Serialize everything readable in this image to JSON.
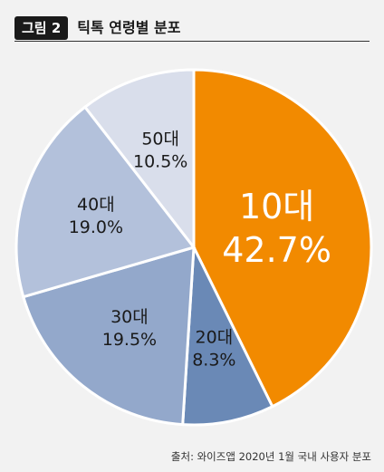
{
  "figure": {
    "badge": "그림 2",
    "title": "틱톡 연령별 분포",
    "source": "출처: 와이즈앱 2020년 1월 국내 사용자 분포"
  },
  "chart_data": {
    "type": "pie",
    "title": "틱톡 연령별 분포",
    "start_angle_deg": 0,
    "direction": "clockwise",
    "slices": [
      {
        "category": "10대",
        "value": 42.7,
        "value_label": "42.7%",
        "color": "#F28A00",
        "text_color": "#FFFFFF",
        "emphasis": true
      },
      {
        "category": "20대",
        "value": 8.3,
        "value_label": "8.3%",
        "color": "#6A89B6",
        "text_color": "#1A1A1A",
        "emphasis": false
      },
      {
        "category": "30대",
        "value": 19.5,
        "value_label": "19.5%",
        "color": "#93A8CB",
        "text_color": "#1A1A1A",
        "emphasis": false
      },
      {
        "category": "40대",
        "value": 19.0,
        "value_label": "19.0%",
        "color": "#B3C1DB",
        "text_color": "#1A1A1A",
        "emphasis": false
      },
      {
        "category": "50대",
        "value": 10.5,
        "value_label": "10.5%",
        "color": "#D9DEEB",
        "text_color": "#1A1A1A",
        "emphasis": false
      }
    ],
    "legend": "none"
  }
}
